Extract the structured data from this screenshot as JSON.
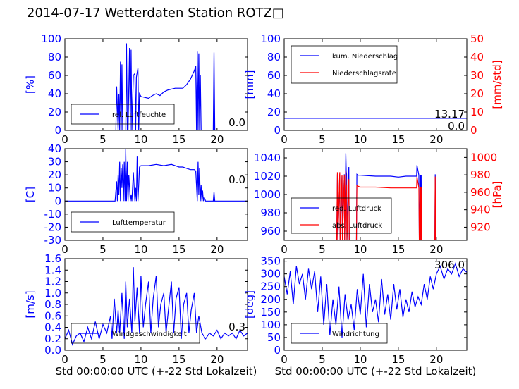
{
  "title": "2014-07-17 Wetterdaten Station ROTZ□",
  "colors": {
    "primary": "#0000ff",
    "secondary": "#ff0000"
  },
  "chart_data": [
    {
      "id": "humidity",
      "type": "line",
      "xlim": [
        0,
        24
      ],
      "ylim": [
        0,
        100
      ],
      "xticks": [
        0,
        5,
        10,
        15,
        20
      ],
      "yticks": [
        0,
        20,
        40,
        60,
        80,
        100
      ],
      "ylabel": "[%]",
      "current_value": "0.0",
      "legend": {
        "position": "lower-left",
        "entries": [
          "rel. Luftfeuchte"
        ]
      },
      "series": [
        {
          "name": "rel. Luftfeuchte",
          "color": "#0000ff",
          "x": [
            0,
            6.7,
            6.8,
            7.0,
            7.1,
            7.2,
            7.3,
            7.4,
            7.5,
            7.6,
            7.7,
            7.8,
            8.0,
            8.1,
            8.2,
            8.3,
            8.5,
            8.6,
            8.7,
            8.8,
            9.0,
            9.2,
            9.3,
            9.4,
            9.6,
            9.7,
            9.8,
            10.0,
            10.5,
            11,
            11.5,
            12,
            12.5,
            13,
            13.5,
            14,
            14.5,
            15,
            15.5,
            16,
            16.5,
            17,
            17.2,
            17.3,
            17.4,
            17.5,
            17.6,
            17.7,
            17.8,
            17.9,
            18.0,
            18.1,
            18.2,
            18.3,
            18.4,
            18.5,
            18.6,
            18.7,
            18.8,
            19.5,
            19.6,
            19.7,
            19.8,
            24
          ],
          "y": [
            0,
            0,
            48,
            0,
            40,
            0,
            75,
            0,
            72,
            0,
            0,
            0,
            0,
            95,
            0,
            0,
            90,
            0,
            88,
            0,
            60,
            62,
            0,
            58,
            68,
            0,
            40,
            37,
            36,
            35,
            38,
            40,
            38,
            42,
            44,
            45,
            46,
            46,
            46,
            50,
            56,
            65,
            70,
            0,
            86,
            0,
            84,
            0,
            60,
            0,
            0,
            0,
            0,
            0,
            0,
            0,
            0,
            0,
            0,
            0,
            85,
            0,
            0,
            0
          ]
        }
      ]
    },
    {
      "id": "precipitation",
      "type": "line",
      "xlim": [
        0,
        24
      ],
      "ylim": [
        0,
        100
      ],
      "ylim_right": [
        0,
        50
      ],
      "xticks": [
        0,
        5,
        10,
        15,
        20
      ],
      "yticks": [
        0,
        20,
        40,
        60,
        80,
        100
      ],
      "yticks_right": [
        0,
        10,
        20,
        30,
        40,
        50
      ],
      "ylabel": "[mm]",
      "ylabel_right": "[mm/std]",
      "current_value": "13.17",
      "current_value_2": "0.0",
      "legend": {
        "position": "upper-left",
        "entries": [
          "kum. Niederschlag",
          "Niederschlagsrate"
        ]
      },
      "series": [
        {
          "name": "kum. Niederschlag",
          "color": "#0000ff",
          "axis": "left",
          "x": [
            0,
            24
          ],
          "y": [
            13.17,
            13.17
          ]
        },
        {
          "name": "Niederschlagsrate",
          "color": "#ff0000",
          "axis": "right",
          "x": [
            0,
            24
          ],
          "y": [
            0,
            0
          ]
        }
      ]
    },
    {
      "id": "temperature",
      "type": "line",
      "xlim": [
        0,
        24
      ],
      "ylim": [
        -30,
        40
      ],
      "xticks": [
        0,
        5,
        10,
        15,
        20
      ],
      "yticks": [
        -30,
        -20,
        -10,
        0,
        10,
        20,
        30,
        40
      ],
      "ylabel": "[C]",
      "current_value": "0.0",
      "legend": {
        "position": "lower-left",
        "entries": [
          "Lufttemperatur"
        ]
      },
      "series": [
        {
          "name": "Lufttemperatur",
          "color": "#0000ff",
          "x": [
            0,
            6.6,
            6.8,
            6.9,
            7.0,
            7.1,
            7.2,
            7.3,
            7.4,
            7.5,
            7.6,
            7.7,
            7.8,
            7.9,
            8.0,
            8.1,
            8.2,
            8.3,
            8.4,
            8.6,
            8.7,
            8.8,
            9.0,
            9.2,
            9.3,
            9.4,
            9.5,
            9.6,
            9.7,
            9.8,
            10,
            11,
            12,
            13,
            14,
            15,
            15.5,
            16,
            16.5,
            17,
            17.2,
            17.4,
            17.5,
            17.6,
            17.7,
            17.8,
            17.9,
            18.0,
            18.1,
            18.2,
            18.3,
            18.5,
            19,
            19.5,
            19.6,
            19.7,
            20,
            24
          ],
          "y": [
            0,
            0,
            15,
            0,
            20,
            5,
            30,
            0,
            25,
            10,
            28,
            0,
            30,
            0,
            40,
            0,
            30,
            0,
            20,
            0,
            5,
            0,
            22,
            0,
            10,
            0,
            34,
            0,
            12,
            26,
            27,
            27,
            28,
            27,
            28,
            26,
            26,
            25,
            24,
            24,
            23,
            0,
            30,
            5,
            25,
            0,
            12,
            0,
            8,
            0,
            3,
            0,
            0,
            0,
            7,
            0,
            0,
            0
          ]
        }
      ]
    },
    {
      "id": "pressure",
      "type": "line",
      "xlim": [
        0,
        24
      ],
      "ylim": [
        950,
        1050
      ],
      "ylim_right": [
        905,
        1010
      ],
      "xticks": [
        0,
        5,
        10,
        15,
        20
      ],
      "yticks": [
        960,
        980,
        1000,
        1020,
        1040
      ],
      "yticks_right": [
        920,
        940,
        960,
        980,
        1000
      ],
      "ylabel": "",
      "ylabel_right": "[hPa]",
      "legend": {
        "position": "lower-left",
        "entries": [
          "red. Luftdruck",
          "abs. Luftdruck"
        ]
      },
      "series": [
        {
          "name": "red. Luftdruck",
          "color": "#0000ff",
          "axis": "left",
          "x": [
            0,
            6.9,
            7.0,
            7.05,
            7.3,
            7.35,
            7.6,
            7.65,
            7.9,
            7.95,
            8.1,
            8.15,
            8.2,
            8.25,
            8.5,
            8.55,
            9.5,
            9.55,
            9.7,
            10,
            12,
            14,
            15,
            16,
            17,
            17.4,
            17.45,
            17.7,
            17.75,
            17.9,
            17.95,
            18,
            18.05,
            19.8,
            19.85,
            19.9,
            24
          ],
          "y": [
            950,
            950,
            1022,
            950,
            1022,
            950,
            1020,
            950,
            1022,
            950,
            1045,
            1025,
            1022,
            950,
            1030,
            950,
            950,
            1022,
            1021,
            1021,
            1020,
            1020,
            1019,
            1020,
            1020,
            1020,
            1032,
            1021,
            950,
            1021,
            950,
            1021,
            950,
            950,
            1022,
            950,
            950
          ]
        },
        {
          "name": "abs. Luftdruck",
          "color": "#ff0000",
          "axis": "right",
          "x": [
            0,
            6.9,
            7.0,
            7.05,
            7.3,
            7.35,
            7.6,
            7.65,
            7.9,
            7.95,
            8.1,
            8.15,
            8.2,
            8.25,
            8.5,
            8.55,
            9.5,
            9.55,
            9.7,
            10,
            12,
            14,
            15,
            16,
            17,
            17.4,
            17.45,
            17.7,
            17.75,
            17.9,
            17.95,
            18,
            18.05,
            19.8,
            19.85,
            19.9,
            24
          ],
          "y": [
            905,
            905,
            983,
            905,
            983,
            905,
            980,
            905,
            980,
            905,
            985,
            968,
            968,
            905,
            975,
            905,
            905,
            968,
            967,
            966,
            966,
            965,
            965,
            965,
            965,
            965,
            978,
            965,
            905,
            966,
            905,
            966,
            905,
            905,
            978,
            905,
            905
          ]
        }
      ]
    },
    {
      "id": "wind_speed",
      "type": "line",
      "xlim": [
        0,
        24
      ],
      "ylim": [
        0,
        1.6
      ],
      "xticks": [
        0,
        5,
        10,
        15,
        20
      ],
      "yticks": [
        0.0,
        0.2,
        0.4,
        0.6,
        0.8,
        1.0,
        1.2,
        1.4,
        1.6
      ],
      "ytick_labels": [
        "0.0",
        "0.2",
        "0.4",
        "0.6",
        "0.8",
        "1.0",
        "1.2",
        "1.4",
        "1.6"
      ],
      "ylabel": "[m/s]",
      "xlabel": "Std 00:00:00 UTC (+-22 Std Lokalzeit)",
      "current_value": "0.3",
      "legend": {
        "position": "lower-left",
        "entries": [
          "Windgeschwindigkeit"
        ]
      },
      "series": [
        {
          "name": "Windgeschwindigkeit",
          "color": "#0000ff",
          "x": [
            0,
            0.5,
            1,
            1.5,
            2,
            2.5,
            3,
            3.5,
            4,
            4.5,
            5,
            5.5,
            6,
            6.2,
            6.5,
            6.8,
            7,
            7.2,
            7.5,
            7.8,
            8,
            8.2,
            8.5,
            8.8,
            9,
            9.2,
            9.5,
            9.8,
            10,
            10.3,
            10.6,
            11,
            11.3,
            11.6,
            12,
            12.3,
            12.6,
            13,
            13.3,
            13.6,
            14,
            14.3,
            14.6,
            15,
            15.3,
            15.6,
            16,
            16.3,
            16.6,
            17,
            17.3,
            17.6,
            18,
            18.5,
            19,
            19.5,
            20,
            20.5,
            21,
            21.5,
            22,
            22.5,
            23,
            23.5,
            24
          ],
          "y": [
            0.2,
            0.35,
            0.1,
            0.25,
            0.3,
            0.15,
            0.4,
            0.2,
            0.5,
            0.2,
            0.45,
            0.3,
            0.6,
            0.2,
            0.9,
            0.3,
            0.7,
            0.3,
            1.0,
            0.2,
            1.2,
            0.4,
            0.9,
            0.3,
            1.45,
            0.5,
            1.1,
            0.3,
            1.3,
            0.4,
            0.8,
            1.2,
            0.3,
            0.9,
            1.3,
            0.4,
            0.8,
            1.0,
            0.3,
            0.7,
            1.2,
            0.3,
            0.9,
            1.1,
            0.2,
            0.8,
            1.0,
            0.3,
            0.7,
            1.0,
            0.3,
            0.6,
            0.3,
            0.2,
            0.3,
            0.25,
            0.35,
            0.2,
            0.3,
            0.25,
            0.3,
            0.2,
            0.35,
            0.25,
            0.3
          ]
        }
      ]
    },
    {
      "id": "wind_direction",
      "type": "line",
      "xlim": [
        0,
        24
      ],
      "ylim": [
        0,
        360
      ],
      "xticks": [
        0,
        5,
        10,
        15,
        20
      ],
      "yticks": [
        0,
        50,
        100,
        150,
        200,
        250,
        300,
        350
      ],
      "ylabel": "[deg]",
      "xlabel": "Std 00:00:00 UTC (+-22 Std Lokalzeit)",
      "current_value": "306.0",
      "legend": {
        "position": "lower-left",
        "entries": [
          "Windrichtung"
        ]
      },
      "series": [
        {
          "name": "Windrichtung",
          "color": "#0000ff",
          "x": [
            0,
            0.4,
            0.8,
            1.2,
            1.6,
            2,
            2.4,
            2.8,
            3.2,
            3.6,
            4,
            4.4,
            4.8,
            5.2,
            5.6,
            6,
            6.4,
            6.8,
            7.2,
            7.6,
            8,
            8.4,
            8.8,
            9.2,
            9.6,
            10,
            10.4,
            10.8,
            11.2,
            11.6,
            12,
            12.4,
            12.8,
            13.2,
            13.6,
            14,
            14.4,
            14.8,
            15.2,
            15.6,
            16,
            16.4,
            16.8,
            17.2,
            17.6,
            18,
            18.4,
            18.8,
            19.2,
            19.6,
            20,
            20.5,
            21,
            21.5,
            22,
            22.5,
            23,
            23.5,
            24
          ],
          "y": [
            290,
            220,
            310,
            180,
            330,
            260,
            300,
            200,
            320,
            240,
            310,
            150,
            290,
            100,
            260,
            60,
            200,
            100,
            250,
            50,
            220,
            120,
            180,
            80,
            240,
            140,
            300,
            90,
            260,
            150,
            200,
            110,
            280,
            140,
            220,
            120,
            260,
            160,
            240,
            130,
            200,
            150,
            230,
            170,
            210,
            180,
            260,
            200,
            290,
            240,
            300,
            330,
            280,
            320,
            300,
            340,
            290,
            320,
            306
          ]
        }
      ]
    }
  ]
}
